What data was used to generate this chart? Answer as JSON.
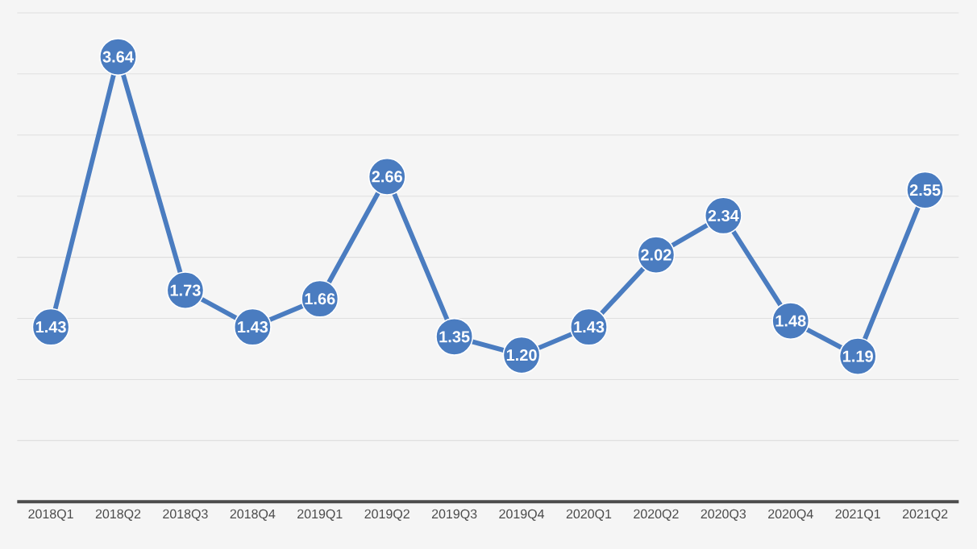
{
  "chart_data": {
    "type": "line",
    "categories": [
      "2018Q1",
      "2018Q2",
      "2018Q3",
      "2018Q4",
      "2019Q1",
      "2019Q2",
      "2019Q3",
      "2019Q4",
      "2020Q1",
      "2020Q2",
      "2020Q3",
      "2020Q4",
      "2021Q1",
      "2021Q2"
    ],
    "series": [
      {
        "color": "#4a7cc0",
        "values": [
          1.43,
          3.64,
          1.73,
          1.43,
          1.66,
          2.66,
          1.35,
          1.2,
          1.43,
          2.02,
          2.34,
          1.48,
          1.19,
          2.55
        ],
        "value_labels": [
          "1.43",
          "3.64",
          "1.73",
          "1.43",
          "1.66",
          "2.66",
          "1.35",
          "1.20",
          "1.43",
          "2.02",
          "2.34",
          "1.48",
          "1.19",
          "2.55"
        ]
      }
    ],
    "marker": "circle",
    "line_style": "solid",
    "grid": "y",
    "tick_labels": "x"
  }
}
